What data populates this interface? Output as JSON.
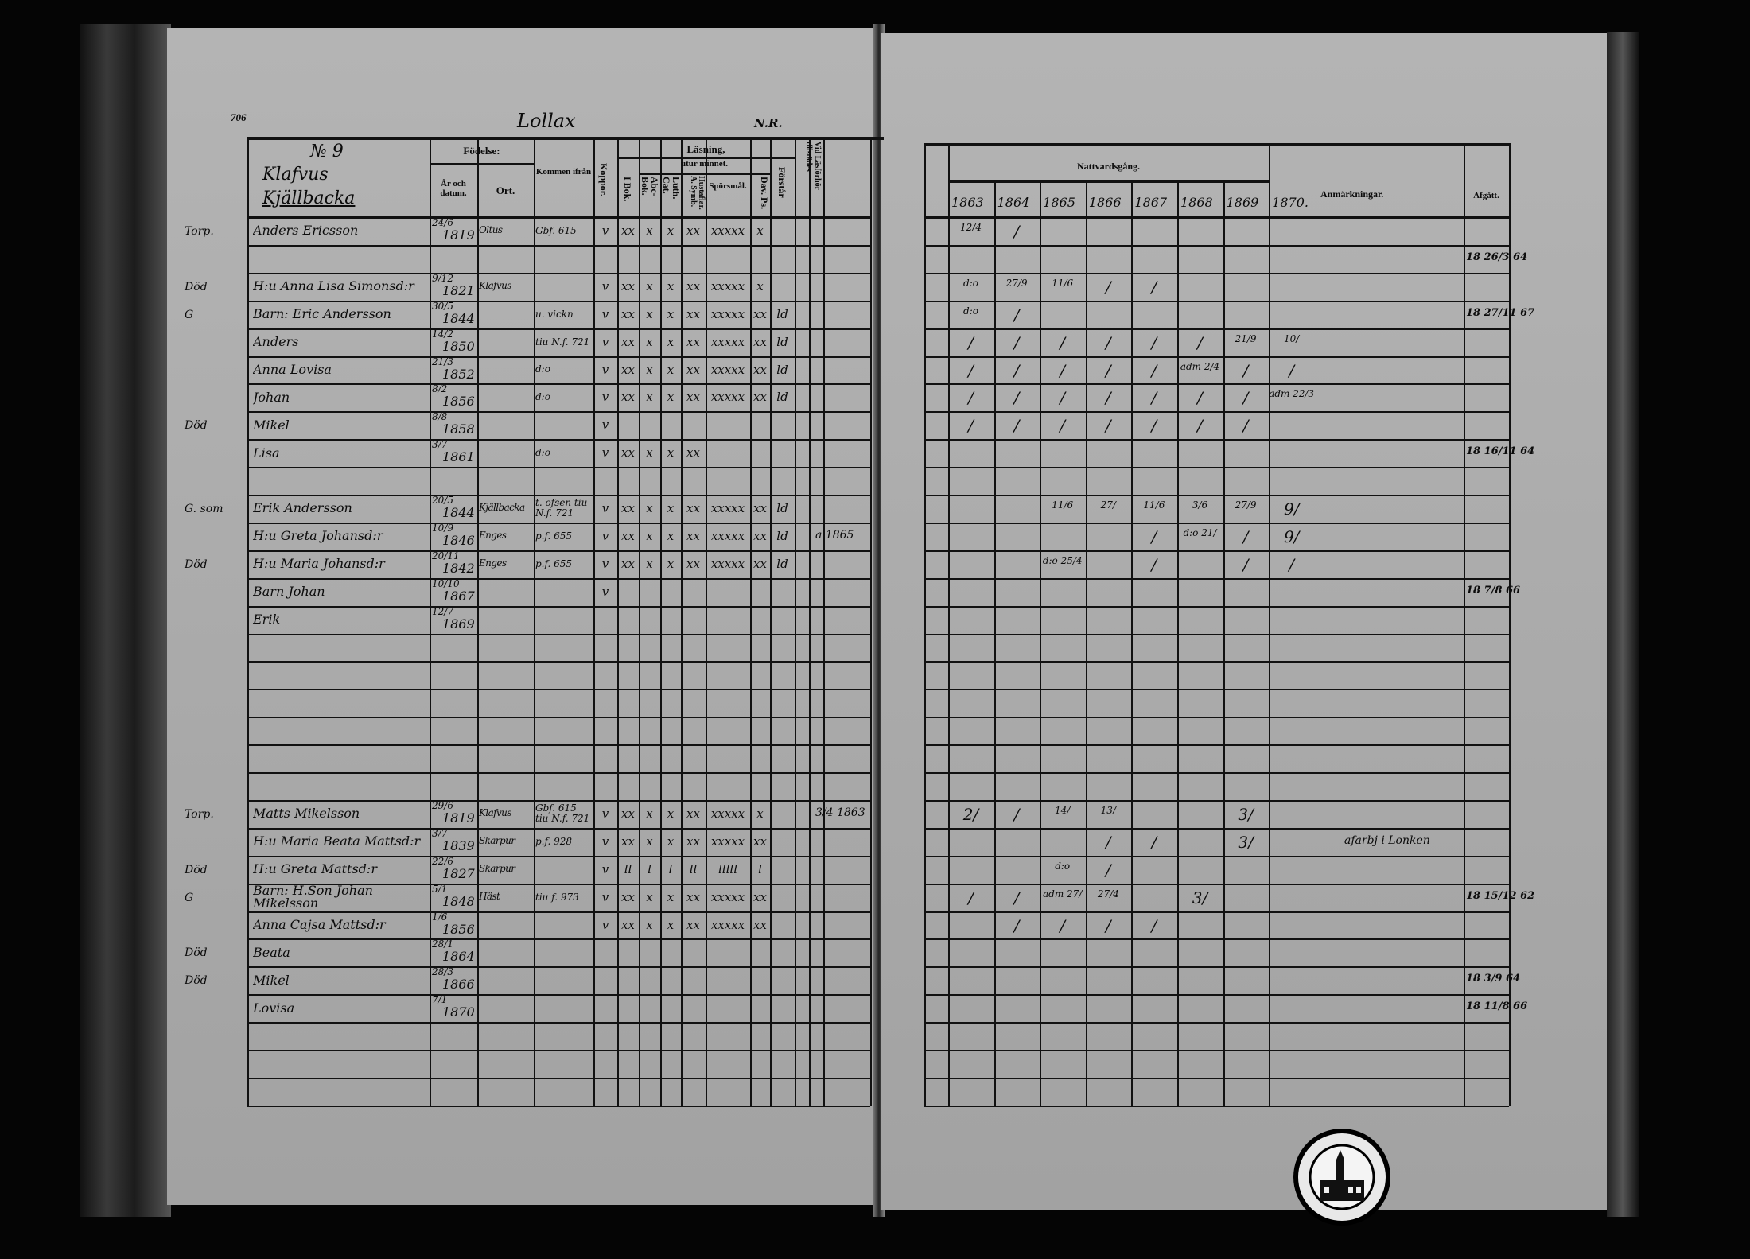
{
  "left_page": {
    "page_number": "706",
    "parish": "Lollax",
    "corner_note": "N.R.",
    "household_no": "№ 9",
    "village": "Klafvus",
    "farm": "Kjällbacka",
    "headers": {
      "fodelse": "Födelse:",
      "ar_datum": "År och datum.",
      "ort": "Ort.",
      "kommen": "Kommen ifrån",
      "koppor": "Koppor.",
      "lasning": "Läsning,",
      "utur_minnet": "utur minnet.",
      "i_bok": "I Bok.",
      "abc_bok": "Abc-Bok.",
      "luth_cat": "Luth. Cat.",
      "hustaflar": "Hustaflar. A. Symb.",
      "sporsmal": "Spörsmål.",
      "dav_ps": "Dav. Ps.",
      "forstar": "Förstår",
      "vid_lasforhor": "Vid Läsförhör tillstädes"
    },
    "rows": [
      {
        "row": 0,
        "margin": "Torp.",
        "name": "Anders Ericsson",
        "date": "24/6",
        "year": "1819",
        "place": "Oltus",
        "from": "Gbf. 615",
        "koppor": "v",
        "marks": [
          "xx",
          "x",
          "x",
          "xx",
          "xxxxx",
          "x",
          ""
        ]
      },
      {
        "row": 2,
        "margin": "Död",
        "name": "H:u Anna Lisa Simonsd:r",
        "date": "9/12",
        "year": "1821",
        "place": "Klafvus",
        "from": "",
        "koppor": "v",
        "marks": [
          "xx",
          "x",
          "x",
          "xx",
          "xxxxx",
          "x",
          ""
        ]
      },
      {
        "row": 3,
        "margin": "G",
        "name": "Barn: Eric Andersson",
        "date": "30/5",
        "year": "1844",
        "place": "",
        "from": "u. vickn",
        "koppor": "v",
        "marks": [
          "xx",
          "x",
          "x",
          "xx",
          "xxxxx",
          "xx",
          "ld"
        ]
      },
      {
        "row": 4,
        "margin": "",
        "name": "Anders",
        "date": "14/2",
        "year": "1850",
        "place": "",
        "from": "tiu N.f. 721",
        "koppor": "v",
        "marks": [
          "xx",
          "x",
          "x",
          "xx",
          "xxxxx",
          "xx",
          "ld"
        ]
      },
      {
        "row": 5,
        "margin": "",
        "name": "Anna Lovisa",
        "date": "21/3",
        "year": "1852",
        "place": "",
        "from": "d:o",
        "koppor": "v",
        "marks": [
          "xx",
          "x",
          "x",
          "xx",
          "xxxxx",
          "xx",
          "ld"
        ]
      },
      {
        "row": 6,
        "margin": "",
        "name": "Johan",
        "date": "8/2",
        "year": "1856",
        "place": "",
        "from": "d:o",
        "koppor": "v",
        "marks": [
          "xx",
          "x",
          "x",
          "xx",
          "xxxxx",
          "xx",
          "ld"
        ]
      },
      {
        "row": 7,
        "margin": "Död",
        "name": "Mikel",
        "date": "8/8",
        "year": "1858",
        "place": "",
        "from": "",
        "koppor": "v",
        "marks": [
          "",
          "",
          "",
          "",
          "",
          "",
          ""
        ]
      },
      {
        "row": 8,
        "margin": "",
        "name": "Lisa",
        "date": "3/7",
        "year": "1861",
        "place": "",
        "from": "d:o",
        "koppor": "v",
        "marks": [
          "xx",
          "x",
          "x",
          "xx",
          "",
          "",
          ""
        ]
      },
      {
        "row": 10,
        "margin": "G. som",
        "name": "Erik Andersson",
        "date": "20/5",
        "year": "1844",
        "place": "Kjällbacka",
        "from": "t. ofsen tiu N.f. 721",
        "koppor": "v",
        "marks": [
          "xx",
          "x",
          "x",
          "xx",
          "xxxxx",
          "xx",
          "ld"
        ]
      },
      {
        "row": 11,
        "margin": "",
        "name": "H:u Greta Johansd:r",
        "date": "10/9",
        "year": "1846",
        "place": "Enges",
        "from": "p.f. 655",
        "koppor": "v",
        "marks": [
          "xx",
          "x",
          "x",
          "xx",
          "xxxxx",
          "xx",
          "ld"
        ]
      },
      {
        "row": 12,
        "margin": "Död",
        "name": "H:u Maria Johansd:r",
        "date": "20/11",
        "year": "1842",
        "place": "Enges",
        "from": "p.f. 655",
        "koppor": "v",
        "marks": [
          "xx",
          "x",
          "x",
          "xx",
          "xxxxx",
          "xx",
          "ld"
        ]
      },
      {
        "row": 13,
        "margin": "",
        "name": "Barn Johan",
        "date": "10/10",
        "year": "1867",
        "place": "",
        "from": "",
        "koppor": "v",
        "marks": [
          "",
          "",
          "",
          "",
          "",
          "",
          ""
        ]
      },
      {
        "row": 14,
        "margin": "",
        "name": "Erik",
        "date": "12/7",
        "year": "1869",
        "place": "",
        "from": "",
        "koppor": "",
        "marks": [
          "",
          "",
          "",
          "",
          "",
          "",
          ""
        ]
      },
      {
        "row": 21,
        "margin": "Torp.",
        "name": "Matts Mikelsson",
        "date": "29/6",
        "year": "1819",
        "place": "Klafvus",
        "from": "Gbf. 615 tiu N.f. 721",
        "koppor": "v",
        "marks": [
          "xx",
          "x",
          "x",
          "xx",
          "xxxxx",
          "x",
          ""
        ]
      },
      {
        "row": 22,
        "margin": "",
        "name": "H:u Maria Beata Mattsd:r",
        "date": "3/7",
        "year": "1839",
        "place": "Skarpur",
        "from": "p.f. 928",
        "koppor": "v",
        "marks": [
          "xx",
          "x",
          "x",
          "xx",
          "xxxxx",
          "xx",
          ""
        ]
      },
      {
        "row": 23,
        "margin": "Död",
        "name": "H:u Greta Mattsd:r",
        "date": "22/6",
        "year": "1827",
        "place": "Skarpur",
        "from": "",
        "koppor": "v",
        "marks": [
          "ll",
          "l",
          "l",
          "ll",
          "lllll",
          "l",
          ""
        ]
      },
      {
        "row": 24,
        "margin": "G",
        "name": "Barn: H.Son Johan Mikelsson",
        "date": "5/1",
        "year": "1848",
        "place": "Häst",
        "from": "tiu f. 973",
        "koppor": "v",
        "marks": [
          "xx",
          "x",
          "x",
          "xx",
          "xxxxx",
          "xx",
          ""
        ]
      },
      {
        "row": 25,
        "margin": "",
        "name": "Anna Cajsa Mattsd:r",
        "date": "1/6",
        "year": "1856",
        "place": "",
        "from": "",
        "koppor": "v",
        "marks": [
          "xx",
          "x",
          "x",
          "xx",
          "xxxxx",
          "xx",
          ""
        ]
      },
      {
        "row": 26,
        "margin": "Död",
        "name": "Beata",
        "date": "28/1",
        "year": "1864",
        "place": "",
        "from": "",
        "koppor": "",
        "marks": [
          "",
          "",
          "",
          "",
          "",
          "",
          ""
        ]
      },
      {
        "row": 27,
        "margin": "Död",
        "name": "Mikel",
        "date": "28/3",
        "year": "1866",
        "place": "",
        "from": "",
        "koppor": "",
        "marks": [
          "",
          "",
          "",
          "",
          "",
          "",
          ""
        ]
      },
      {
        "row": 28,
        "margin": "",
        "name": "Lovisa",
        "date": "7/1",
        "year": "1870",
        "place": "",
        "from": "",
        "koppor": "",
        "marks": [
          "",
          "",
          "",
          "",
          "",
          "",
          ""
        ]
      }
    ],
    "lasforhor_notes": [
      {
        "row": 11,
        "text": "a 1865"
      },
      {
        "row": 21,
        "text": "3/4 1863"
      }
    ]
  },
  "right_page": {
    "nattvardsgang": "Nattvardsgång.",
    "years": [
      "1863",
      "1864",
      "1865",
      "1866",
      "1867",
      "1868",
      "1869",
      "1870."
    ],
    "anmarkningar": "Anmärkningar.",
    "afgatt": "Afgått.",
    "communion": [
      {
        "row": 0,
        "cells": [
          "12/4",
          "/",
          "",
          "",
          "",
          "",
          "",
          ""
        ]
      },
      {
        "row": 2,
        "cells": [
          "d:o",
          "27/9",
          "11/6",
          "/",
          "/",
          "",
          "",
          ""
        ]
      },
      {
        "row": 3,
        "cells": [
          "d:o",
          "/",
          "",
          "",
          "",
          "",
          "",
          ""
        ]
      },
      {
        "row": 4,
        "cells": [
          "/",
          "/",
          "/",
          "/",
          "/",
          "/",
          "21/9",
          "10/"
        ]
      },
      {
        "row": 5,
        "cells": [
          "/",
          "/",
          "/",
          "/",
          "/",
          "adm 2/4",
          "/",
          "/"
        ]
      },
      {
        "row": 6,
        "cells": [
          "/",
          "/",
          "/",
          "/",
          "/",
          "/",
          "/",
          "adm 22/3"
        ]
      },
      {
        "row": 7,
        "cells": [
          "/",
          "/",
          "/",
          "/",
          "/",
          "/",
          "/",
          ""
        ]
      },
      {
        "row": 10,
        "cells": [
          "",
          "",
          "11/6",
          "27/",
          "11/6",
          "3/6",
          "27/9",
          "9/"
        ]
      },
      {
        "row": 11,
        "cells": [
          "",
          "",
          "",
          "",
          "/",
          "d:o 21/",
          "/",
          "9/"
        ]
      },
      {
        "row": 12,
        "cells": [
          "",
          "",
          "d:o 25/4",
          "",
          "/",
          "",
          "/",
          "/"
        ]
      },
      {
        "row": 21,
        "cells": [
          "2/",
          "/",
          "14/",
          "13/",
          "",
          "",
          "3/",
          ""
        ]
      },
      {
        "row": 22,
        "cells": [
          "",
          "",
          "",
          "/",
          "/",
          "",
          "3/",
          ""
        ]
      },
      {
        "row": 23,
        "cells": [
          "",
          "",
          "d:o",
          "/",
          "",
          "",
          "",
          ""
        ]
      },
      {
        "row": 24,
        "cells": [
          "/",
          "/",
          "adm 27/",
          "27/4",
          "",
          "3/",
          "",
          ""
        ]
      },
      {
        "row": 25,
        "cells": [
          "",
          "/",
          "/",
          "/",
          "/",
          "",
          "",
          ""
        ]
      }
    ],
    "remarks": [
      {
        "row": 22,
        "text": "afarbj i Lonken"
      }
    ],
    "departures": [
      {
        "row": 1,
        "text": "18 26/3 64"
      },
      {
        "row": 3,
        "text": "18 27/11 67"
      },
      {
        "row": 8,
        "text": "18 16/11 64"
      },
      {
        "row": 13,
        "text": "18 7/8 66"
      },
      {
        "row": 24,
        "text": "18 15/12 62"
      },
      {
        "row": 27,
        "text": "18 3/9 64"
      },
      {
        "row": 28,
        "text": "18 11/8 66"
      }
    ]
  }
}
